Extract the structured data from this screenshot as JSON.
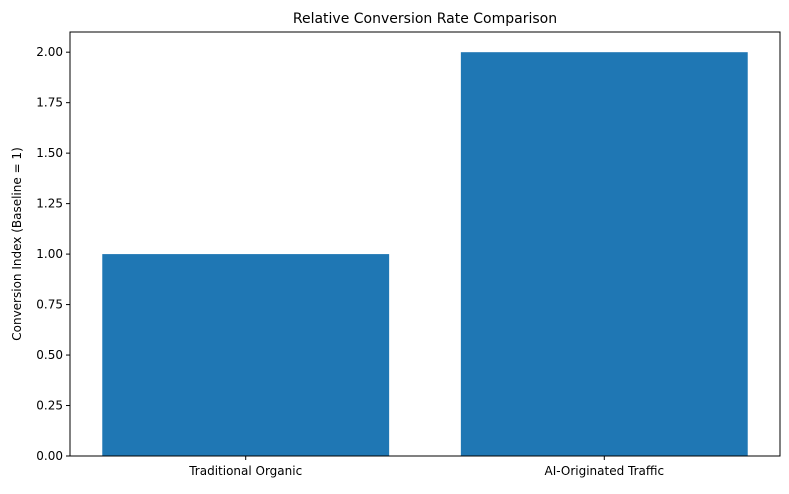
{
  "chart_data": {
    "type": "bar",
    "title": "Relative Conversion Rate Comparison",
    "xlabel": "",
    "ylabel": "Conversion Index (Baseline = 1)",
    "categories": [
      "Traditional Organic",
      "AI-Originated Traffic"
    ],
    "values": [
      1.0,
      2.0
    ],
    "ylim": [
      0,
      2.1
    ],
    "yticks": [
      "0.00",
      "0.25",
      "0.50",
      "0.75",
      "1.00",
      "1.25",
      "1.50",
      "1.75",
      "2.00"
    ],
    "grid": false,
    "bar_color": "#1f77b4"
  }
}
